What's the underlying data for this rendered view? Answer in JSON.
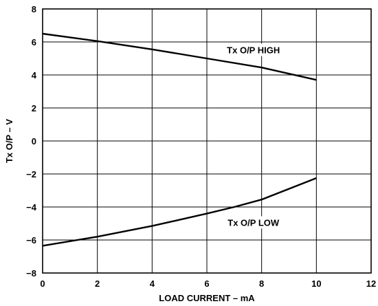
{
  "chart_data": {
    "type": "line",
    "title": "",
    "xlabel": "LOAD CURRENT – mA",
    "ylabel": "Tx O/P – V",
    "xlim": [
      0,
      12
    ],
    "ylim": [
      -8,
      8
    ],
    "x_ticks": [
      0,
      2,
      4,
      6,
      8,
      10,
      12
    ],
    "y_ticks": [
      8,
      6,
      4,
      2,
      0,
      -2,
      -4,
      -6,
      -8
    ],
    "x_tick_labels": [
      "0",
      "2",
      "4",
      "6",
      "8",
      "10",
      "12"
    ],
    "y_tick_labels": [
      "8",
      "6",
      "4",
      "2",
      "0",
      "−2",
      "−4",
      "−6",
      "−8"
    ],
    "grid": true,
    "line_color": "#000000",
    "series": [
      {
        "name": "Tx O/P HIGH",
        "x": [
          0,
          2,
          4,
          6,
          8,
          10
        ],
        "y": [
          6.5,
          6.05,
          5.55,
          5.0,
          4.45,
          3.7
        ]
      },
      {
        "name": "Tx O/P LOW",
        "x": [
          0,
          2,
          4,
          6,
          7,
          8,
          10
        ],
        "y": [
          -6.35,
          -5.8,
          -5.15,
          -4.4,
          -4.0,
          -3.55,
          -2.25
        ]
      }
    ]
  }
}
